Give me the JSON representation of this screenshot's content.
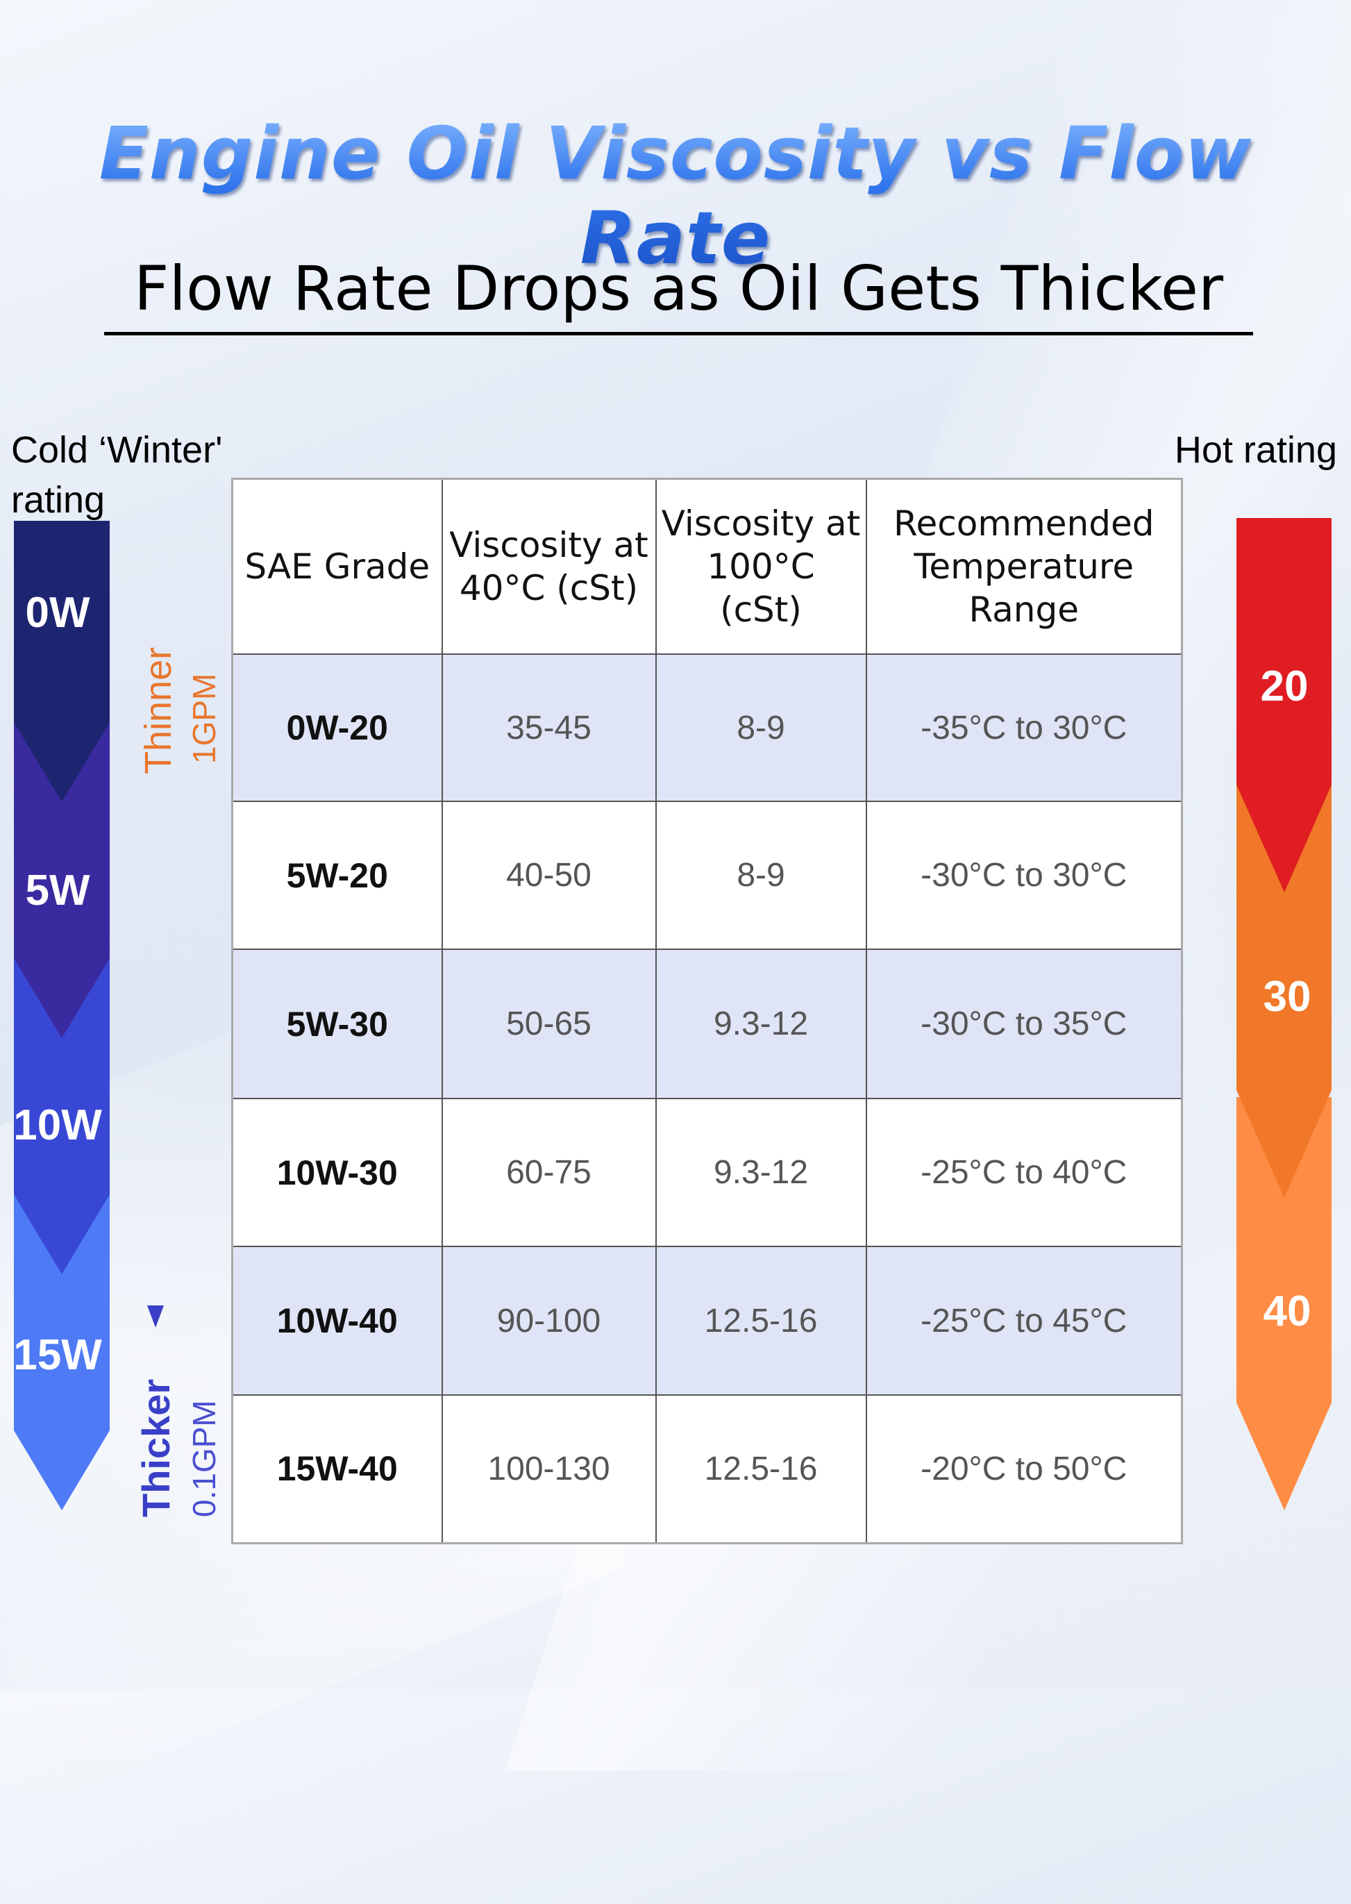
{
  "title": "Engine Oil Viscosity vs Flow Rate",
  "subtitle": "Flow Rate Drops as Oil Gets Thicker",
  "cold_label": "Cold ‘Winter' rating",
  "hot_label": "Hot rating",
  "cold_grades": [
    "0W",
    "5W",
    "10W",
    "15W"
  ],
  "hot_grades": [
    "20",
    "30",
    "40"
  ],
  "flow_indicator": {
    "top_label": "Thinner",
    "top_rate": "1GPM",
    "bottom_label": "Thicker",
    "bottom_rate": "0.1GPM"
  },
  "table": {
    "headers": [
      "SAE Grade",
      "Viscosity at 40°C (cSt)",
      "Viscosity at 100°C (cSt)",
      "Recommended Temperature Range"
    ],
    "rows": [
      [
        "0W-20",
        "35-45",
        "8-9",
        "-35°C to 30°C"
      ],
      [
        "5W-20",
        "40-50",
        "8-9",
        "-30°C to 30°C"
      ],
      [
        "5W-30",
        "50-65",
        "9.3-12",
        "-30°C to 35°C"
      ],
      [
        "10W-30",
        "60-75",
        "9.3-12",
        "-25°C to 40°C"
      ],
      [
        "10W-40",
        "90-100",
        "12.5-16",
        "-25°C to 45°C"
      ],
      [
        "15W-40",
        "100-130",
        "12.5-16",
        "-20°C to 50°C"
      ]
    ]
  },
  "colors": {
    "cold": [
      "#1e2570",
      "#3a2aa0",
      "#3848d4",
      "#4f7af6"
    ],
    "hot": [
      "#e01d22",
      "#f07828",
      "#ff8c45"
    ],
    "thinner": "#e8762d",
    "thicker": "#3a3fc8",
    "row_shade": "#dfe5f6"
  }
}
